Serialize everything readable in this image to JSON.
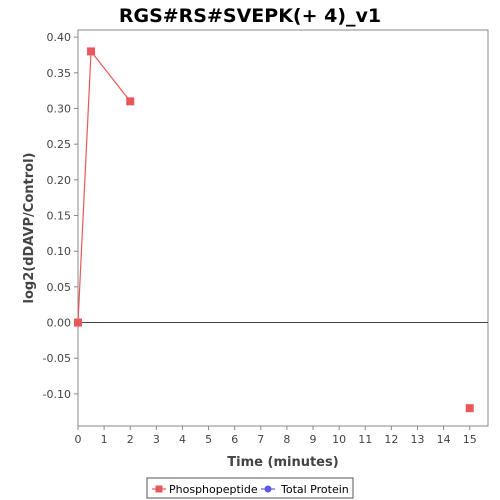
{
  "chart_data": {
    "type": "line",
    "title": "RGS#RS#SVEPK(+ 4)_v1",
    "xlabel": "Time (minutes)",
    "ylabel": "log2(dDAVP/Control)",
    "xlim": [
      0,
      15.7
    ],
    "ylim": [
      -0.145,
      0.41
    ],
    "xticks": [
      0,
      1,
      2,
      3,
      4,
      5,
      6,
      7,
      8,
      9,
      10,
      11,
      12,
      13,
      14,
      15
    ],
    "xtick_labels": [
      "0",
      "1",
      "2",
      "3",
      "4",
      "5",
      "6",
      "7",
      "8",
      "9",
      "10",
      "11",
      "12",
      "13",
      "14",
      "15"
    ],
    "yticks": [
      0.4,
      0.35,
      0.3,
      0.25,
      0.2,
      0.15,
      0.1,
      0.05,
      0.0,
      -0.05,
      -0.1
    ],
    "ytick_labels": [
      "0.40",
      "0.35",
      "0.30",
      "0.25",
      "0.20",
      "0.15",
      "0.10",
      "0.05",
      "0.00",
      "-0.05",
      "-0.10"
    ],
    "zero_line": true,
    "grid": false,
    "legend_position": "bottom",
    "series": [
      {
        "name": "Phosphopeptide",
        "color": "#e8585a",
        "marker": "square",
        "segments": [
          [
            {
              "x": 0,
              "y": 0.0
            },
            {
              "x": 0.5,
              "y": 0.38
            },
            {
              "x": 2,
              "y": 0.31
            }
          ],
          [
            {
              "x": 15,
              "y": -0.12
            }
          ]
        ]
      },
      {
        "name": "Total Protein",
        "color": "#5a5ae8",
        "marker": "circle",
        "segments": []
      }
    ]
  }
}
